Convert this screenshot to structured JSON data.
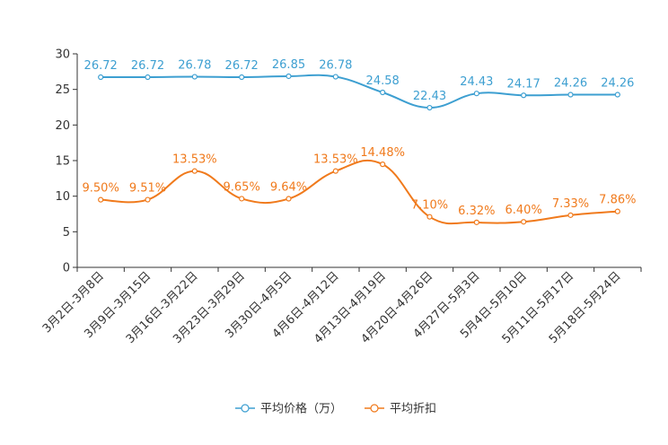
{
  "chart_data": {
    "type": "line",
    "title": "",
    "xlabel": "",
    "ylabel": "",
    "ylim": [
      0,
      30
    ],
    "yticks": [
      0,
      5,
      10,
      15,
      20,
      25,
      30
    ],
    "grid": false,
    "legend_position": "bottom-center",
    "categories": [
      "3月2日-3月8日",
      "3月9日-3月15日",
      "3月16日-3月22日",
      "3月23日-3月29日",
      "3月30日-4月5日",
      "4月6日-4月12日",
      "4月13日-4月19日",
      "4月20日-4月26日",
      "4月27日-5月3日",
      "5月4日-5月10日",
      "5月11日-5月17日",
      "5月18日-5月24日"
    ],
    "series": [
      {
        "name": "平均价格（万）",
        "color": "#3d9fd1",
        "values": [
          26.72,
          26.72,
          26.78,
          26.72,
          26.85,
          26.78,
          24.58,
          22.43,
          24.43,
          24.17,
          24.26,
          24.26
        ],
        "labels": [
          "26.72",
          "26.72",
          "26.78",
          "26.72",
          "26.85",
          "26.78",
          "24.58",
          "22.43",
          "24.43",
          "24.17",
          "24.26",
          "24.26"
        ]
      },
      {
        "name": "平均折扣",
        "color": "#f07a1c",
        "values": [
          9.5,
          9.51,
          13.53,
          9.65,
          9.64,
          13.53,
          14.48,
          7.1,
          6.32,
          6.4,
          7.33,
          7.86
        ],
        "labels": [
          "9.50%",
          "9.51%",
          "13.53%",
          "9.65%",
          "9.64%",
          "13.53%",
          "14.48%",
          "7.10%",
          "6.32%",
          "6.40%",
          "7.33%",
          "7.86%"
        ]
      }
    ]
  }
}
